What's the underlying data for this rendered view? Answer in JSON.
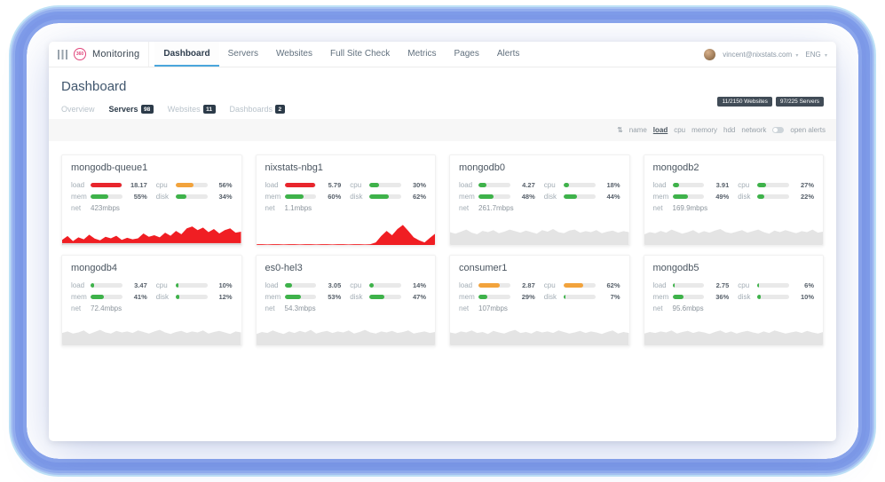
{
  "navbar": {
    "logo_badge": "360",
    "logo_text": "Monitoring",
    "tabs": [
      {
        "label": "Dashboard",
        "active": true
      },
      {
        "label": "Servers",
        "active": false
      },
      {
        "label": "Websites",
        "active": false
      },
      {
        "label": "Full Site Check",
        "active": false
      },
      {
        "label": "Metrics",
        "active": false
      },
      {
        "label": "Pages",
        "active": false
      },
      {
        "label": "Alerts",
        "active": false
      }
    ],
    "user_email": "vincent@nixstats.com",
    "language": "ENG"
  },
  "header": {
    "title": "Dashboard",
    "badges": [
      "11/2150 Websites",
      "97/225 Servers"
    ]
  },
  "subtabs": [
    {
      "label": "Overview",
      "count": "",
      "active": false
    },
    {
      "label": "Servers",
      "count": "98",
      "active": true
    },
    {
      "label": "Websites",
      "count": "11",
      "active": false
    },
    {
      "label": "Dashboards",
      "count": "2",
      "active": false
    }
  ],
  "sortbar": {
    "items": [
      {
        "label": "name",
        "active": false
      },
      {
        "label": "load",
        "active": true
      },
      {
        "label": "cpu",
        "active": false
      },
      {
        "label": "memory",
        "active": false
      },
      {
        "label": "hdd",
        "active": false
      },
      {
        "label": "network",
        "active": false
      }
    ],
    "toggle_label": "open alerts"
  },
  "icons": {
    "sort": "⇅",
    "chevron_down": "▾"
  },
  "labels": {
    "load": "load",
    "cpu": "cpu",
    "mem": "mem",
    "disk": "disk",
    "net": "net"
  },
  "colors": {
    "green": "#3eb24a",
    "orange": "#f2a33c",
    "red": "#e8252c",
    "track": "#e9e9e9",
    "spark_red": "#f01e23",
    "spark_gray": "#e4e4e4",
    "accent": "#4aa6dc"
  },
  "servers": [
    {
      "name": "mongodb-queue1",
      "load": {
        "value": "18.17",
        "pct": 97,
        "color": "red"
      },
      "cpu": {
        "value": "56%",
        "pct": 56,
        "color": "orange"
      },
      "mem": {
        "value": "55%",
        "pct": 55,
        "color": "green"
      },
      "disk": {
        "value": "34%",
        "pct": 34,
        "color": "green"
      },
      "net": "423mbps",
      "spark": {
        "color": "red",
        "baseline": true,
        "values": [
          0.2,
          0.35,
          0.15,
          0.3,
          0.22,
          0.4,
          0.25,
          0.18,
          0.32,
          0.26,
          0.36,
          0.2,
          0.28,
          0.22,
          0.26,
          0.45,
          0.32,
          0.38,
          0.3,
          0.48,
          0.36,
          0.55,
          0.42,
          0.65,
          0.72,
          0.58,
          0.68,
          0.5,
          0.62,
          0.45,
          0.58,
          0.65,
          0.48,
          0.52
        ]
      }
    },
    {
      "name": "nixstats-nbg1",
      "load": {
        "value": "5.79",
        "pct": 97,
        "color": "red"
      },
      "cpu": {
        "value": "30%",
        "pct": 30,
        "color": "green"
      },
      "mem": {
        "value": "60%",
        "pct": 60,
        "color": "green"
      },
      "disk": {
        "value": "62%",
        "pct": 62,
        "color": "green"
      },
      "net": "1.1mbps",
      "spark": {
        "color": "red",
        "baseline": false,
        "values": [
          0.03,
          0.03,
          0.02,
          0.03,
          0.03,
          0.02,
          0.03,
          0.03,
          0.02,
          0.03,
          0.03,
          0.02,
          0.03,
          0.03,
          0.02,
          0.03,
          0.03,
          0.02,
          0.03,
          0.03,
          0.02,
          0.03,
          0.1,
          0.35,
          0.55,
          0.38,
          0.62,
          0.78,
          0.55,
          0.3,
          0.18,
          0.1,
          0.28,
          0.45
        ]
      }
    },
    {
      "name": "mongodb0",
      "load": {
        "value": "4.27",
        "pct": 25,
        "color": "green"
      },
      "cpu": {
        "value": "18%",
        "pct": 18,
        "color": "green"
      },
      "mem": {
        "value": "48%",
        "pct": 48,
        "color": "green"
      },
      "disk": {
        "value": "44%",
        "pct": 44,
        "color": "green"
      },
      "net": "261.7mbps",
      "spark": {
        "color": "gray",
        "baseline": false,
        "values": [
          0.5,
          0.44,
          0.52,
          0.6,
          0.48,
          0.42,
          0.55,
          0.5,
          0.58,
          0.46,
          0.52,
          0.6,
          0.54,
          0.48,
          0.56,
          0.5,
          0.44,
          0.58,
          0.52,
          0.62,
          0.5,
          0.46,
          0.56,
          0.6,
          0.48,
          0.54,
          0.5,
          0.58,
          0.46,
          0.52,
          0.56,
          0.48,
          0.54,
          0.5
        ]
      }
    },
    {
      "name": "mongodb2",
      "load": {
        "value": "3.91",
        "pct": 22,
        "color": "green"
      },
      "cpu": {
        "value": "27%",
        "pct": 27,
        "color": "green"
      },
      "mem": {
        "value": "49%",
        "pct": 49,
        "color": "green"
      },
      "disk": {
        "value": "22%",
        "pct": 22,
        "color": "green"
      },
      "net": "169.9mbps",
      "spark": {
        "color": "gray",
        "baseline": false,
        "values": [
          0.42,
          0.5,
          0.46,
          0.55,
          0.48,
          0.6,
          0.52,
          0.44,
          0.5,
          0.58,
          0.46,
          0.54,
          0.48,
          0.56,
          0.62,
          0.5,
          0.46,
          0.52,
          0.58,
          0.48,
          0.54,
          0.6,
          0.5,
          0.44,
          0.56,
          0.5,
          0.58,
          0.52,
          0.46,
          0.54,
          0.5,
          0.6,
          0.48,
          0.52
        ]
      }
    },
    {
      "name": "mongodb4",
      "load": {
        "value": "3.47",
        "pct": 10,
        "color": "green"
      },
      "cpu": {
        "value": "10%",
        "pct": 10,
        "color": "green"
      },
      "mem": {
        "value": "41%",
        "pct": 41,
        "color": "green"
      },
      "disk": {
        "value": "12%",
        "pct": 12,
        "color": "green"
      },
      "net": "72.4mbps",
      "spark": {
        "color": "gray",
        "baseline": false,
        "values": [
          0.48,
          0.54,
          0.46,
          0.5,
          0.58,
          0.44,
          0.52,
          0.6,
          0.5,
          0.46,
          0.56,
          0.5,
          0.54,
          0.48,
          0.58,
          0.52,
          0.46,
          0.54,
          0.6,
          0.5,
          0.44,
          0.52,
          0.56,
          0.48,
          0.54,
          0.5,
          0.58,
          0.46,
          0.52,
          0.56,
          0.5,
          0.44,
          0.54,
          0.5
        ]
      }
    },
    {
      "name": "es0-hel3",
      "load": {
        "value": "3.05",
        "pct": 23,
        "color": "green"
      },
      "cpu": {
        "value": "14%",
        "pct": 14,
        "color": "green"
      },
      "mem": {
        "value": "53%",
        "pct": 53,
        "color": "green"
      },
      "disk": {
        "value": "47%",
        "pct": 47,
        "color": "green"
      },
      "net": "54.3mbps",
      "spark": {
        "color": "gray",
        "baseline": false,
        "values": [
          0.44,
          0.52,
          0.48,
          0.58,
          0.5,
          0.44,
          0.54,
          0.48,
          0.56,
          0.5,
          0.6,
          0.46,
          0.52,
          0.56,
          0.48,
          0.54,
          0.5,
          0.58,
          0.46,
          0.52,
          0.6,
          0.5,
          0.46,
          0.54,
          0.5,
          0.56,
          0.48,
          0.52,
          0.58,
          0.46,
          0.5,
          0.54,
          0.48,
          0.52
        ]
      }
    },
    {
      "name": "consumer1",
      "load": {
        "value": "2.87",
        "pct": 68,
        "color": "orange"
      },
      "cpu": {
        "value": "62%",
        "pct": 62,
        "color": "orange"
      },
      "mem": {
        "value": "29%",
        "pct": 29,
        "color": "green"
      },
      "disk": {
        "value": "7%",
        "pct": 7,
        "color": "green"
      },
      "net": "107mbps",
      "spark": {
        "color": "gray",
        "baseline": false,
        "values": [
          0.5,
          0.46,
          0.54,
          0.5,
          0.58,
          0.48,
          0.52,
          0.44,
          0.56,
          0.5,
          0.46,
          0.54,
          0.6,
          0.48,
          0.52,
          0.46,
          0.56,
          0.5,
          0.54,
          0.48,
          0.58,
          0.52,
          0.46,
          0.5,
          0.56,
          0.48,
          0.54,
          0.5,
          0.44,
          0.52,
          0.58,
          0.46,
          0.52,
          0.48
        ]
      }
    },
    {
      "name": "mongodb5",
      "load": {
        "value": "2.75",
        "pct": 8,
        "color": "green"
      },
      "cpu": {
        "value": "6%",
        "pct": 6,
        "color": "green"
      },
      "mem": {
        "value": "36%",
        "pct": 36,
        "color": "green"
      },
      "disk": {
        "value": "10%",
        "pct": 10,
        "color": "green"
      },
      "net": "95.6mbps",
      "spark": {
        "color": "gray",
        "baseline": false,
        "values": [
          0.46,
          0.52,
          0.48,
          0.54,
          0.5,
          0.58,
          0.46,
          0.52,
          0.56,
          0.48,
          0.54,
          0.5,
          0.44,
          0.52,
          0.58,
          0.48,
          0.54,
          0.46,
          0.52,
          0.56,
          0.5,
          0.46,
          0.54,
          0.48,
          0.58,
          0.52,
          0.46,
          0.5,
          0.54,
          0.48,
          0.56,
          0.5,
          0.46,
          0.52
        ]
      }
    }
  ]
}
